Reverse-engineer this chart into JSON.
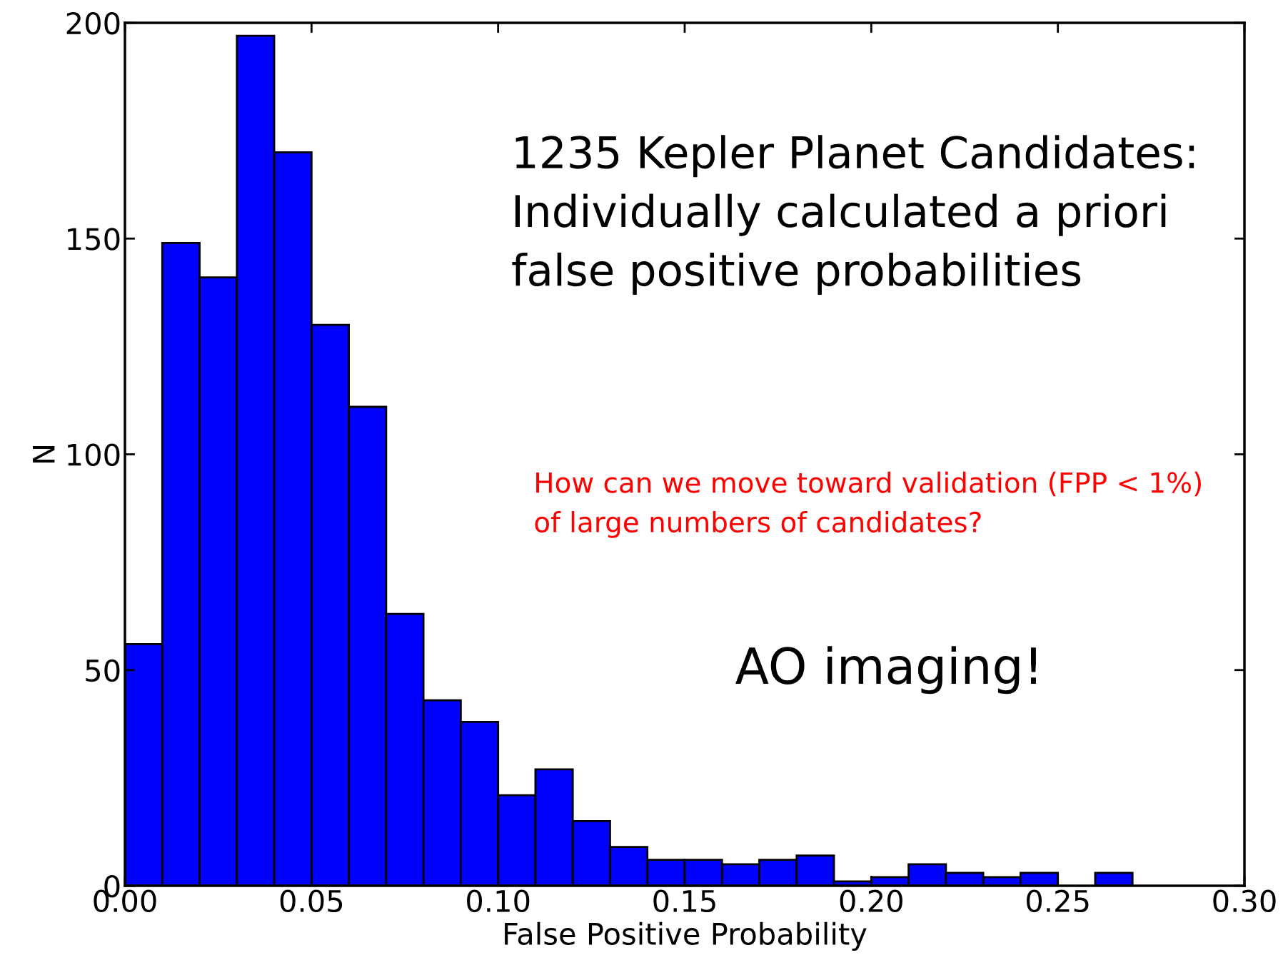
{
  "chart_data": {
    "type": "histogram",
    "xlabel": "False Positive Probability",
    "ylabel": "N",
    "bins": [
      0.0,
      0.01,
      0.02,
      0.03,
      0.04,
      0.05,
      0.06,
      0.07,
      0.08,
      0.09,
      0.1,
      0.11,
      0.12,
      0.13,
      0.14,
      0.15,
      0.16,
      0.17,
      0.18,
      0.19,
      0.2,
      0.21,
      0.22,
      0.23,
      0.24,
      0.25,
      0.26,
      0.27,
      0.28,
      0.29,
      0.3
    ],
    "values": [
      56,
      149,
      141,
      197,
      170,
      130,
      111,
      63,
      43,
      38,
      21,
      27,
      15,
      9,
      6,
      6,
      5,
      6,
      7,
      1,
      2,
      5,
      3,
      2,
      3,
      0,
      3,
      0,
      0,
      0
    ],
    "color": "#0000ff",
    "xlim": [
      0.0,
      0.3
    ],
    "ylim": [
      0,
      200
    ],
    "xticks": [
      {
        "value": 0.0,
        "label": "0.00"
      },
      {
        "value": 0.05,
        "label": "0.05"
      },
      {
        "value": 0.1,
        "label": "0.10"
      },
      {
        "value": 0.15,
        "label": "0.15"
      },
      {
        "value": 0.2,
        "label": "0.20"
      },
      {
        "value": 0.25,
        "label": "0.25"
      },
      {
        "value": 0.3,
        "label": "0.30"
      }
    ],
    "yticks": [
      0,
      50,
      100,
      150,
      200
    ],
    "grid": false,
    "annotations": [
      "1235 Kepler Planet Candidates:\nIndividually calculated a priori\nfalse positive probabilities",
      "How can we move toward validation (FPP < 1%)\nof large numbers of candidates?",
      "AO imaging!"
    ]
  }
}
